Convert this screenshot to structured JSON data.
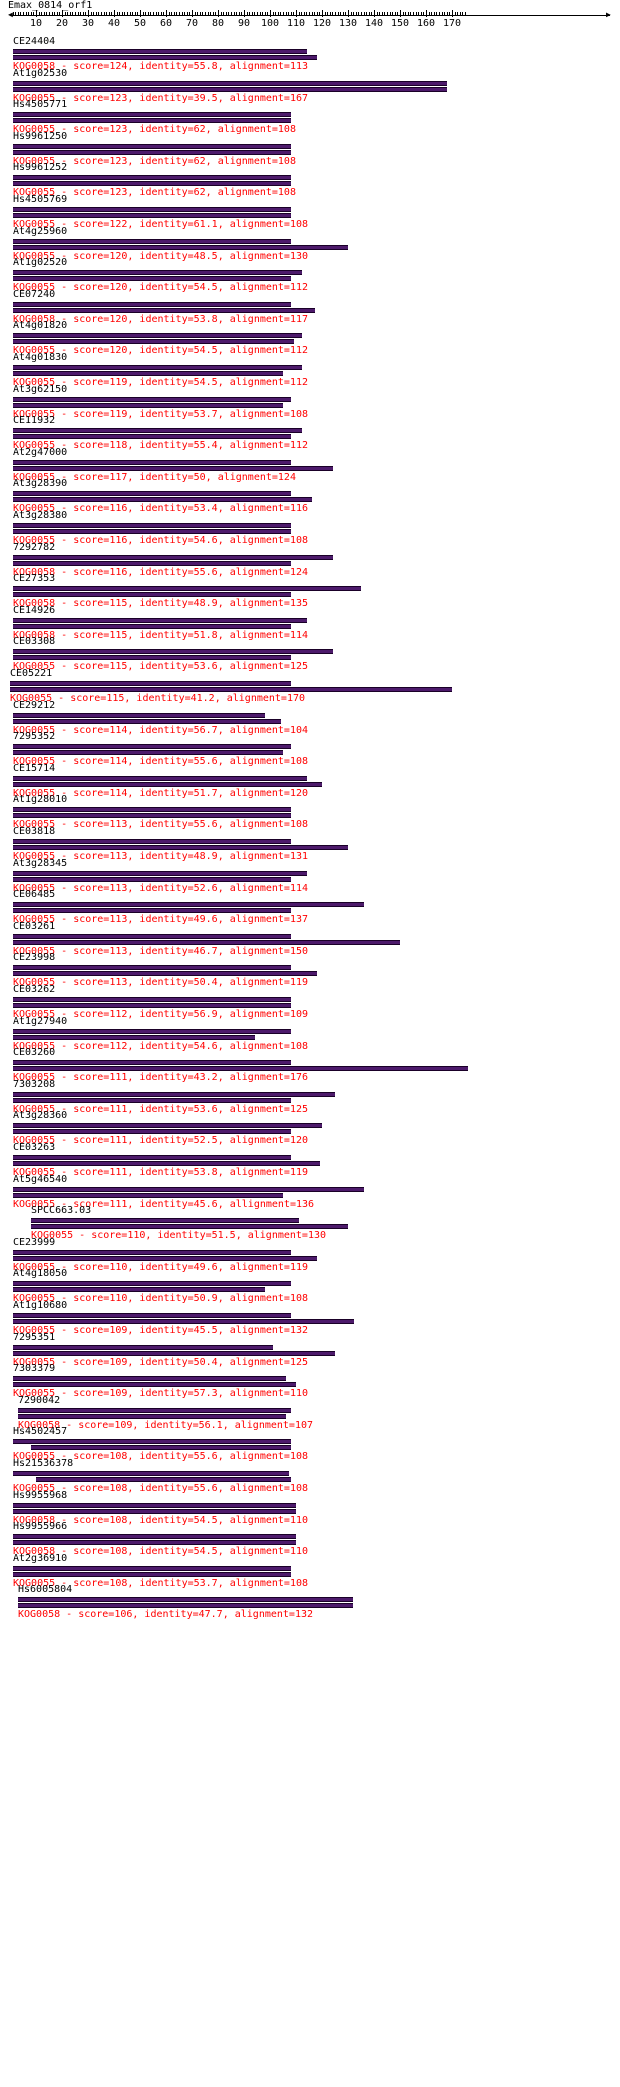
{
  "query": {
    "name": "Emax_0814_orf1"
  },
  "ruler": {
    "min": 0,
    "max": 175,
    "labels": [
      10,
      20,
      30,
      40,
      50,
      60,
      70,
      80,
      90,
      100,
      110,
      120,
      130,
      140,
      150,
      160,
      170
    ]
  },
  "colors": {
    "bar": "#4d1a6b",
    "info_text": "#ff0000",
    "name_text": "#000000"
  },
  "hits": [
    {
      "name": "CE24404",
      "info": "KOG0058 - score=124, identity=55.8, alignment=113",
      "q": [
        1,
        114
      ],
      "s": [
        1,
        118
      ]
    },
    {
      "name": "At1g02530",
      "info": "KOG0055 - score=123, identity=39.5, alignment=167",
      "q": [
        1,
        168
      ],
      "s": [
        1,
        168
      ]
    },
    {
      "name": "Hs4505771",
      "info": "KOG0055 - score=123, identity=62, alignment=108",
      "q": [
        1,
        108
      ],
      "s": [
        1,
        108
      ]
    },
    {
      "name": "Hs9961250",
      "info": "KOG0055 - score=123, identity=62, alignment=108",
      "q": [
        1,
        108
      ],
      "s": [
        1,
        108
      ]
    },
    {
      "name": "Hs9961252",
      "info": "KOG0055 - score=123, identity=62, alignment=108",
      "q": [
        1,
        108
      ],
      "s": [
        1,
        108
      ]
    },
    {
      "name": "Hs4505769",
      "info": "KOG0055 - score=122, identity=61.1, alignment=108",
      "q": [
        1,
        108
      ],
      "s": [
        1,
        108
      ]
    },
    {
      "name": "At4g25960",
      "info": "KOG0055 - score=120, identity=48.5, alignment=130",
      "q": [
        1,
        108
      ],
      "s": [
        1,
        130
      ]
    },
    {
      "name": "At1g02520",
      "info": "KOG0055 - score=120, identity=54.5, alignment=112",
      "q": [
        1,
        112
      ],
      "s": [
        1,
        108
      ]
    },
    {
      "name": "CE07240",
      "info": "KOG0058 - score=120, identity=53.8, alignment=117",
      "q": [
        1,
        108
      ],
      "s": [
        1,
        117
      ]
    },
    {
      "name": "At4g01820",
      "info": "KOG0055 - score=120, identity=54.5, alignment=112",
      "q": [
        1,
        112
      ],
      "s": [
        1,
        109
      ]
    },
    {
      "name": "At4g01830",
      "info": "KOG0055 - score=119, identity=54.5, alignment=112",
      "q": [
        1,
        112
      ],
      "s": [
        1,
        105
      ]
    },
    {
      "name": "At3g62150",
      "info": "KOG0055 - score=119, identity=53.7, alignment=108",
      "q": [
        1,
        108
      ],
      "s": [
        1,
        105
      ]
    },
    {
      "name": "CE11932",
      "info": "KOG0055 - score=118, identity=55.4, alignment=112",
      "q": [
        1,
        112
      ],
      "s": [
        1,
        108
      ]
    },
    {
      "name": "At2g47000",
      "info": "KOG0055 - score=117, identity=50, alignment=124",
      "q": [
        1,
        108
      ],
      "s": [
        1,
        124
      ]
    },
    {
      "name": "At3g28390",
      "info": "KOG0055 - score=116, identity=53.4, alignment=116",
      "q": [
        1,
        108
      ],
      "s": [
        1,
        116
      ]
    },
    {
      "name": "At3g28380",
      "info": "KOG0055 - score=116, identity=54.6, alignment=108",
      "q": [
        1,
        108
      ],
      "s": [
        1,
        108
      ]
    },
    {
      "name": "7292782",
      "info": "KOG0058 - score=116, identity=55.6, alignment=124",
      "q": [
        1,
        124
      ],
      "s": [
        1,
        108
      ]
    },
    {
      "name": "CE27353",
      "info": "KOG0058 - score=115, identity=48.9, alignment=135",
      "q": [
        1,
        135
      ],
      "s": [
        1,
        108
      ]
    },
    {
      "name": "CE14926",
      "info": "KOG0058 - score=115, identity=51.8, alignment=114",
      "q": [
        1,
        114
      ],
      "s": [
        1,
        108
      ]
    },
    {
      "name": "CE03308",
      "info": "KOG0055 - score=115, identity=53.6, alignment=125",
      "q": [
        1,
        124
      ],
      "s": [
        1,
        108
      ]
    },
    {
      "name": "CE05221",
      "info": "KOG0055 - score=115, identity=41.2, alignment=170",
      "q": [
        0,
        108
      ],
      "s": [
        0,
        170
      ]
    },
    {
      "name": "CE29212",
      "info": "KOG0055 - score=114, identity=56.7, alignment=104",
      "q": [
        1,
        98
      ],
      "s": [
        1,
        104
      ]
    },
    {
      "name": "7295352",
      "info": "KOG0055 - score=114, identity=55.6, alignment=108",
      "q": [
        1,
        108
      ],
      "s": [
        1,
        105
      ]
    },
    {
      "name": "CE15714",
      "info": "KOG0055 - score=114, identity=51.7, alignment=120",
      "q": [
        1,
        114
      ],
      "s": [
        1,
        120
      ]
    },
    {
      "name": "At1g28010",
      "info": "KOG0055 - score=113, identity=55.6, alignment=108",
      "q": [
        1,
        108
      ],
      "s": [
        1,
        108
      ]
    },
    {
      "name": "CE03818",
      "info": "KOG0055 - score=113, identity=48.9, alignment=131",
      "q": [
        1,
        108
      ],
      "s": [
        1,
        130
      ]
    },
    {
      "name": "At3g28345",
      "info": "KOG0055 - score=113, identity=52.6, alignment=114",
      "q": [
        1,
        114
      ],
      "s": [
        1,
        108
      ]
    },
    {
      "name": "CE06485",
      "info": "KOG0055 - score=113, identity=49.6, alignment=137",
      "q": [
        1,
        136
      ],
      "s": [
        1,
        108
      ]
    },
    {
      "name": "CE03261",
      "info": "KOG0055 - score=113, identity=46.7, alignment=150",
      "q": [
        1,
        108
      ],
      "s": [
        1,
        150
      ]
    },
    {
      "name": "CE23998",
      "info": "KOG0055 - score=113, identity=50.4, alignment=119",
      "q": [
        1,
        108
      ],
      "s": [
        1,
        118
      ]
    },
    {
      "name": "CE03262",
      "info": "KOG0055 - score=112, identity=56.9, alignment=109",
      "q": [
        1,
        108
      ],
      "s": [
        1,
        108
      ]
    },
    {
      "name": "At1g27940",
      "info": "KOG0055 - score=112, identity=54.6, alignment=108",
      "q": [
        1,
        108
      ],
      "s": [
        1,
        94
      ]
    },
    {
      "name": "CE03260",
      "info": "KOG0055 - score=111, identity=43.2, alignment=176",
      "q": [
        1,
        108
      ],
      "s": [
        1,
        176
      ]
    },
    {
      "name": "7303208",
      "info": "KOG0055 - score=111, identity=53.6, alignment=125",
      "q": [
        1,
        125
      ],
      "s": [
        1,
        108
      ]
    },
    {
      "name": "At3g28360",
      "info": "KOG0055 - score=111, identity=52.5, alignment=120",
      "q": [
        1,
        120
      ],
      "s": [
        1,
        108
      ]
    },
    {
      "name": "CE03263",
      "info": "KOG0055 - score=111, identity=53.8, alignment=119",
      "q": [
        1,
        108
      ],
      "s": [
        1,
        119
      ]
    },
    {
      "name": "At5g46540",
      "info": "KOG0055 - score=111, identity=45.6, allignment=136",
      "q": [
        1,
        136
      ],
      "s": [
        1,
        105
      ]
    },
    {
      "name": "SPCC663.03",
      "info": "KOG0055 - score=110, identity=51.5, alignment=130",
      "q": [
        8,
        111
      ],
      "s": [
        8,
        130
      ]
    },
    {
      "name": "CE23999",
      "info": "KOG0055 - score=110, identity=49.6, alignment=119",
      "q": [
        1,
        108
      ],
      "s": [
        1,
        118
      ]
    },
    {
      "name": "At4g18050",
      "info": "KOG0055 - score=110, identity=50.9, alignment=108",
      "q": [
        1,
        108
      ],
      "s": [
        1,
        98
      ]
    },
    {
      "name": "At1g10680",
      "info": "KOG0055 - score=109, identity=45.5, alignment=132",
      "q": [
        1,
        108
      ],
      "s": [
        1,
        132
      ]
    },
    {
      "name": "7295351",
      "info": "KOG0055 - score=109, identity=50.4, alignment=125",
      "q": [
        1,
        101
      ],
      "s": [
        1,
        125
      ]
    },
    {
      "name": "7303379",
      "info": "KOG0055 - score=109, identity=57.3, alignment=110",
      "q": [
        1,
        106
      ],
      "s": [
        1,
        110
      ]
    },
    {
      "name": "7290042",
      "info": "KOG0058 - score=109, identity=56.1, alignment=107",
      "q": [
        3,
        108
      ],
      "s": [
        3,
        106
      ]
    },
    {
      "name": "Hs4502457",
      "info": "KOG0055 - score=108, identity=55.6, alignment=108",
      "q": [
        1,
        108
      ],
      "s": [
        8,
        108
      ]
    },
    {
      "name": "Hs21536378",
      "info": "KOG0055 - score=108, identity=55.6, alignment=108",
      "q": [
        1,
        107
      ],
      "s": [
        10,
        108
      ]
    },
    {
      "name": "Hs9955968",
      "info": "KOG0058 - score=108, identity=54.5, alignment=110",
      "q": [
        1,
        110
      ],
      "s": [
        1,
        110
      ]
    },
    {
      "name": "Hs9955966",
      "info": "KOG0058 - score=108, identity=54.5, alignment=110",
      "q": [
        1,
        110
      ],
      "s": [
        1,
        110
      ]
    },
    {
      "name": "At2g36910",
      "info": "KOG0055 - score=108, identity=53.7, alignment=108",
      "q": [
        1,
        108
      ],
      "s": [
        1,
        108
      ]
    },
    {
      "name": "Hs6005804",
      "info": "KOG0058 - score=106, identity=47.7, alignment=132",
      "q": [
        3,
        132
      ],
      "s": [
        3,
        132
      ]
    }
  ]
}
